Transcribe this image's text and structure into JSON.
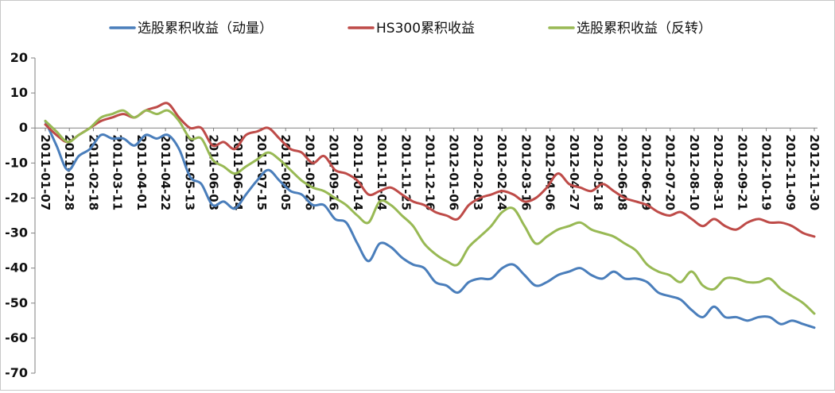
{
  "chart_data": {
    "type": "line",
    "title": "",
    "xlabel": "",
    "ylabel": "",
    "ylim": [
      -70,
      20
    ],
    "yticks": [
      "20",
      "10",
      "0",
      "-10",
      "-20",
      "-30",
      "-40",
      "-50",
      "-60",
      "-70"
    ],
    "grid": false,
    "legend_position": "top",
    "tick_labels": [
      "2011-01-07",
      "2011-01-28",
      "2011-02-18",
      "2011-03-11",
      "2011-04-01",
      "2011-04-22",
      "2011-05-13",
      "2011-06-03",
      "2011-06-24",
      "2011-07-15",
      "2011-08-05",
      "2011-08-26",
      "2011-09-16",
      "2011-10-14",
      "2011-11-04",
      "2011-11-25",
      "2011-12-16",
      "2012-01-06",
      "2012-02-03",
      "2012-02-24",
      "2012-03-16",
      "2012-04-06",
      "2012-04-27",
      "2012-05-18",
      "2012-06-08",
      "2012-06-29",
      "2012-07-20",
      "2012-08-10",
      "2012-08-31",
      "2012-09-21",
      "2012-10-19",
      "2012-11-09",
      "2012-11-30"
    ],
    "series": [
      {
        "name": "选股累积收益（动量）",
        "color": "#4a7ebb",
        "values": [
          2,
          -5,
          -12,
          -8,
          -6,
          -2,
          -3,
          -3,
          -5,
          -2,
          -3,
          -2,
          -6,
          -14,
          -16,
          -22,
          -21,
          -23,
          -19,
          -15,
          -12,
          -15,
          -18,
          -19,
          -22,
          -22,
          -26,
          -27,
          -33,
          -38,
          -33,
          -34,
          -37,
          -39,
          -40,
          -44,
          -45,
          -47,
          -44,
          -43,
          -43,
          -40,
          -39,
          -42,
          -45,
          -44,
          -42,
          -41,
          -40,
          -42,
          -43,
          -41,
          -43,
          -43,
          -44,
          -47,
          -48,
          -49,
          -52,
          -54,
          -51,
          -54,
          -54,
          -55,
          -54,
          -54,
          -56,
          -55,
          -56,
          -57
        ]
      },
      {
        "name": "HS300累积收益",
        "color": "#be4b48",
        "values": [
          1,
          -2,
          -4,
          -2,
          0,
          2,
          3,
          4,
          3,
          5,
          6,
          7,
          3,
          0,
          0,
          -5,
          -4,
          -6,
          -2,
          -1,
          0,
          -3,
          -6,
          -7,
          -10,
          -8,
          -12,
          -13,
          -15,
          -19,
          -18,
          -17,
          -19,
          -21,
          -22,
          -24,
          -25,
          -26,
          -22,
          -20,
          -19,
          -18,
          -19,
          -21,
          -20,
          -17,
          -13,
          -16,
          -17,
          -18,
          -16,
          -18,
          -20,
          -21,
          -22,
          -24,
          -25,
          -24,
          -26,
          -28,
          -26,
          -28,
          -29,
          -27,
          -26,
          -27,
          -27,
          -28,
          -30,
          -31
        ]
      },
      {
        "name": "选股累积收益（反转）",
        "color": "#98b954",
        "values": [
          2,
          -1,
          -4,
          -2,
          0,
          3,
          4,
          5,
          3,
          5,
          4,
          5,
          2,
          -3,
          -3,
          -9,
          -11,
          -13,
          -11,
          -9,
          -7,
          -9,
          -12,
          -15,
          -17,
          -18,
          -20,
          -22,
          -25,
          -27,
          -21,
          -22,
          -25,
          -28,
          -33,
          -36,
          -38,
          -39,
          -34,
          -31,
          -28,
          -24,
          -23,
          -28,
          -33,
          -31,
          -29,
          -28,
          -27,
          -29,
          -30,
          -31,
          -33,
          -35,
          -39,
          -41,
          -42,
          -44,
          -41,
          -45,
          -46,
          -43,
          -43,
          -44,
          -44,
          -43,
          -46,
          -48,
          -50,
          -53
        ]
      }
    ]
  }
}
